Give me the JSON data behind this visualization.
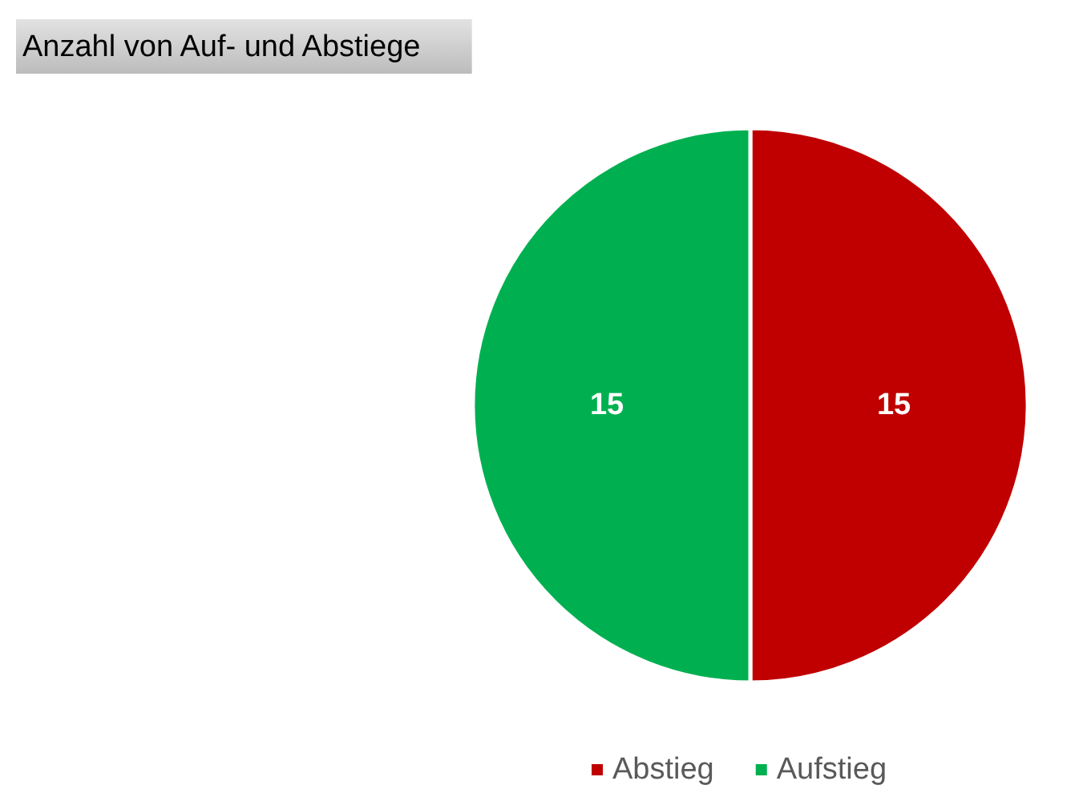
{
  "chart_data": {
    "type": "pie",
    "title": "Anzahl von Auf- und Abstiege",
    "categories": [
      "Abstieg",
      "Aufstieg"
    ],
    "values": [
      15,
      15
    ],
    "colors": [
      "#c00000",
      "#00b050"
    ],
    "data_labels": true,
    "legend": "bottom"
  }
}
